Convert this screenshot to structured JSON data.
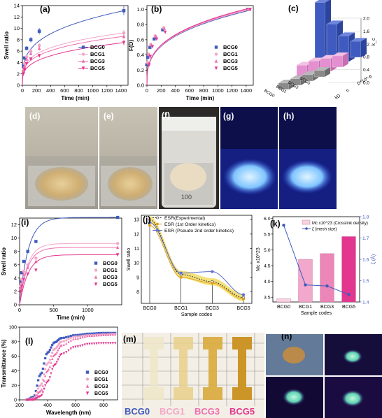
{
  "panels": {
    "a": "(a)",
    "b": "(b)",
    "c": "(c)",
    "d": "(d)",
    "e": "(e)",
    "f": "(f)",
    "g": "(g)",
    "h": "(h)",
    "i": "(i)",
    "j": "(j)",
    "k": "(k)",
    "l": "(l)",
    "m": "(m)",
    "n": "(n)"
  },
  "colors": {
    "BCG0": "#3f5bbf",
    "BCG1": "#f4a6c8",
    "BCG3": "#ef6fae",
    "BCG5": "#e2368f"
  },
  "chart_data": [
    {
      "id": "a",
      "type": "line",
      "xlabel": "Time (min)",
      "ylabel": "Swell ratio",
      "xlim": [
        0,
        1500
      ],
      "ylim": [
        0,
        14
      ],
      "xticks": [
        "0",
        "200",
        "400",
        "600",
        "800",
        "1000",
        "1200",
        "1400"
      ],
      "yticks": [
        "0",
        "2",
        "4",
        "6",
        "8",
        "10",
        "12",
        "14"
      ],
      "legend": "center-right",
      "series": [
        {
          "name": "BCG0",
          "x": [
            0,
            15,
            30,
            60,
            120,
            240,
            1440
          ],
          "y": [
            0,
            3.5,
            4.8,
            6.5,
            8.0,
            9.5,
            13.1
          ]
        },
        {
          "name": "BCG1",
          "x": [
            0,
            15,
            30,
            60,
            120,
            240,
            1440
          ],
          "y": [
            0,
            2.8,
            3.8,
            5.0,
            6.0,
            7.0,
            9.2
          ]
        },
        {
          "name": "BCG3",
          "x": [
            0,
            15,
            30,
            60,
            120,
            240,
            1440
          ],
          "y": [
            0,
            2.5,
            3.4,
            4.6,
            5.6,
            6.5,
            8.6
          ]
        },
        {
          "name": "BCG5",
          "x": [
            0,
            15,
            30,
            60,
            120,
            240,
            1440
          ],
          "y": [
            0,
            2.0,
            2.8,
            3.8,
            4.6,
            5.2,
            7.5
          ]
        }
      ]
    },
    {
      "id": "b",
      "type": "scatter",
      "xlabel": "Time (min)",
      "ylabel": "F(D)",
      "xlim": [
        0,
        1500
      ],
      "ylim": [
        0,
        1.05
      ],
      "xticks": [
        "0",
        "200",
        "400",
        "600",
        "800",
        "1000",
        "1200",
        "1400"
      ],
      "yticks": [
        "0.0",
        "0.2",
        "0.4",
        "0.6",
        "0.8",
        "1.0"
      ],
      "legend": "center-right",
      "series": [
        {
          "name": "BCG0",
          "x": [
            15,
            30,
            60,
            120,
            240,
            1440
          ],
          "y": [
            0.27,
            0.37,
            0.5,
            0.61,
            0.73,
            1.0
          ]
        },
        {
          "name": "BCG1",
          "x": [
            15,
            30,
            60,
            120,
            240,
            1440
          ],
          "y": [
            0.3,
            0.41,
            0.54,
            0.65,
            0.76,
            1.0
          ]
        },
        {
          "name": "BCG3",
          "x": [
            15,
            30,
            60,
            120,
            240,
            1440
          ],
          "y": [
            0.29,
            0.4,
            0.53,
            0.65,
            0.75,
            1.0
          ]
        },
        {
          "name": "BCG5",
          "x": [
            15,
            30,
            60,
            120,
            240,
            1440
          ],
          "y": [
            0.27,
            0.38,
            0.51,
            0.61,
            0.7,
            1.0
          ]
        }
      ]
    },
    {
      "id": "c",
      "type": "bar3d",
      "categories": [
        "BCG0",
        "BCG1",
        "BCG3",
        "BCG5"
      ],
      "rows": [
        "kD",
        "n",
        "D*10^-6"
      ],
      "zticks": [
        "0.0",
        "0.4",
        "0.8",
        "1.2",
        "1.6",
        "2.0"
      ],
      "zlabel": "k_c",
      "values": {
        "kD": [
          0.2,
          0.2,
          0.2,
          0.2
        ],
        "n": [
          0.45,
          0.45,
          0.4,
          0.35
        ],
        "D*10^-6": [
          2.1,
          1.3,
          0.8,
          0.5
        ]
      }
    },
    {
      "id": "i",
      "type": "line",
      "xlabel": "Time (min)",
      "ylabel": "Swell ratio",
      "xlim": [
        0,
        1500
      ],
      "ylim": [
        0,
        13
      ],
      "xticks": [
        "0",
        "500",
        "1000"
      ],
      "yticks": [
        "0",
        "2",
        "4",
        "6",
        "8",
        "10",
        "12"
      ],
      "legend": "bottom-right",
      "series": [
        {
          "name": "BCG0",
          "x": [
            15,
            30,
            60,
            120,
            240,
            1440
          ],
          "y": [
            3.5,
            4.8,
            6.5,
            8.0,
            9.5,
            13.1
          ]
        },
        {
          "name": "BCG1",
          "x": [
            15,
            30,
            60,
            120,
            240,
            1440
          ],
          "y": [
            2.8,
            3.8,
            5.0,
            6.0,
            7.0,
            9.2
          ]
        },
        {
          "name": "BCG3",
          "x": [
            15,
            30,
            60,
            120,
            240,
            1440
          ],
          "y": [
            2.5,
            3.4,
            4.6,
            5.6,
            6.5,
            8.6
          ]
        },
        {
          "name": "BCG5",
          "x": [
            15,
            30,
            60,
            120,
            240,
            1440
          ],
          "y": [
            2.0,
            2.8,
            3.8,
            4.6,
            5.2,
            7.5
          ]
        }
      ]
    },
    {
      "id": "j",
      "type": "line",
      "xlabel": "Sample codes",
      "ylabel": "Swell ratio",
      "categories": [
        "BCG0",
        "BCG1",
        "BCG3",
        "BCG5"
      ],
      "ylim": [
        7.2,
        13.3
      ],
      "yticks": [
        "8",
        "9",
        "10",
        "11",
        "12",
        "13"
      ],
      "legend": "top-right",
      "series": [
        {
          "name": "ESR(Experimental)",
          "values": [
            13.0,
            9.2,
            8.7,
            7.6
          ]
        },
        {
          "name": "ESR (1st Order kinetics)",
          "values": [
            12.6,
            9.0,
            8.6,
            7.5
          ]
        },
        {
          "name": "ESR (Pseudo 2nd order kinetics)",
          "values": [
            12.8,
            9.3,
            9.4,
            7.8
          ]
        }
      ]
    },
    {
      "id": "k",
      "type": "bar",
      "xlabel": "Sample codes",
      "ylabel_left": "Mc x10^23",
      "ylabel_right": "ζ (Å)",
      "categories": [
        "BCG0",
        "BCG1",
        "BCG3",
        "BCG5"
      ],
      "ylim": [
        3.35,
        6.05
      ],
      "y2lim": [
        1.4,
        1.8
      ],
      "yticks": [
        "3.5",
        "4.0",
        "4.5",
        "5.0",
        "5.5",
        "6.0"
      ],
      "y2ticks": [
        "1.4",
        "1.5",
        "1.6",
        "1.7",
        "1.8"
      ],
      "legend": "top-right",
      "series": [
        {
          "name": "Mc x10^23 (Crosslink density)",
          "values": [
            3.45,
            4.7,
            4.88,
            5.42
          ]
        },
        {
          "name": "ζ (mesh size)",
          "values": [
            1.76,
            1.48,
            1.475,
            1.435
          ]
        }
      ]
    },
    {
      "id": "l",
      "type": "line",
      "xlabel": "Wavelength (nm)",
      "ylabel": "Transmittance (%)",
      "xlim": [
        200,
        900
      ],
      "ylim": [
        0,
        100
      ],
      "xticks": [
        "200",
        "400",
        "600",
        "800"
      ],
      "yticks": [
        "0",
        "20",
        "40",
        "60",
        "80",
        "100"
      ],
      "legend": "bottom-right",
      "series": [
        {
          "name": "BCG0",
          "x": [
            250,
            300,
            350,
            400,
            450,
            500,
            600,
            700,
            800,
            900
          ],
          "y": [
            0,
            4,
            35,
            65,
            79,
            85,
            89,
            91,
            92,
            92
          ]
        },
        {
          "name": "BCG1",
          "x": [
            250,
            300,
            350,
            400,
            450,
            500,
            600,
            700,
            800,
            900
          ],
          "y": [
            0,
            2,
            20,
            50,
            70,
            80,
            87,
            89,
            90,
            91
          ]
        },
        {
          "name": "BCG3",
          "x": [
            250,
            300,
            350,
            400,
            450,
            500,
            600,
            700,
            800,
            900
          ],
          "y": [
            0,
            1,
            12,
            40,
            62,
            75,
            84,
            88,
            89,
            90
          ]
        },
        {
          "name": "BCG5",
          "x": [
            250,
            300,
            350,
            400,
            450,
            500,
            600,
            700,
            800,
            900
          ],
          "y": [
            0,
            0,
            5,
            25,
            48,
            63,
            73,
            77,
            78,
            78
          ]
        }
      ]
    }
  ],
  "photos": {
    "labels": [
      "BCG0",
      "BCG1",
      "BCG3",
      "BCG5"
    ],
    "beaker_mark": "100"
  }
}
